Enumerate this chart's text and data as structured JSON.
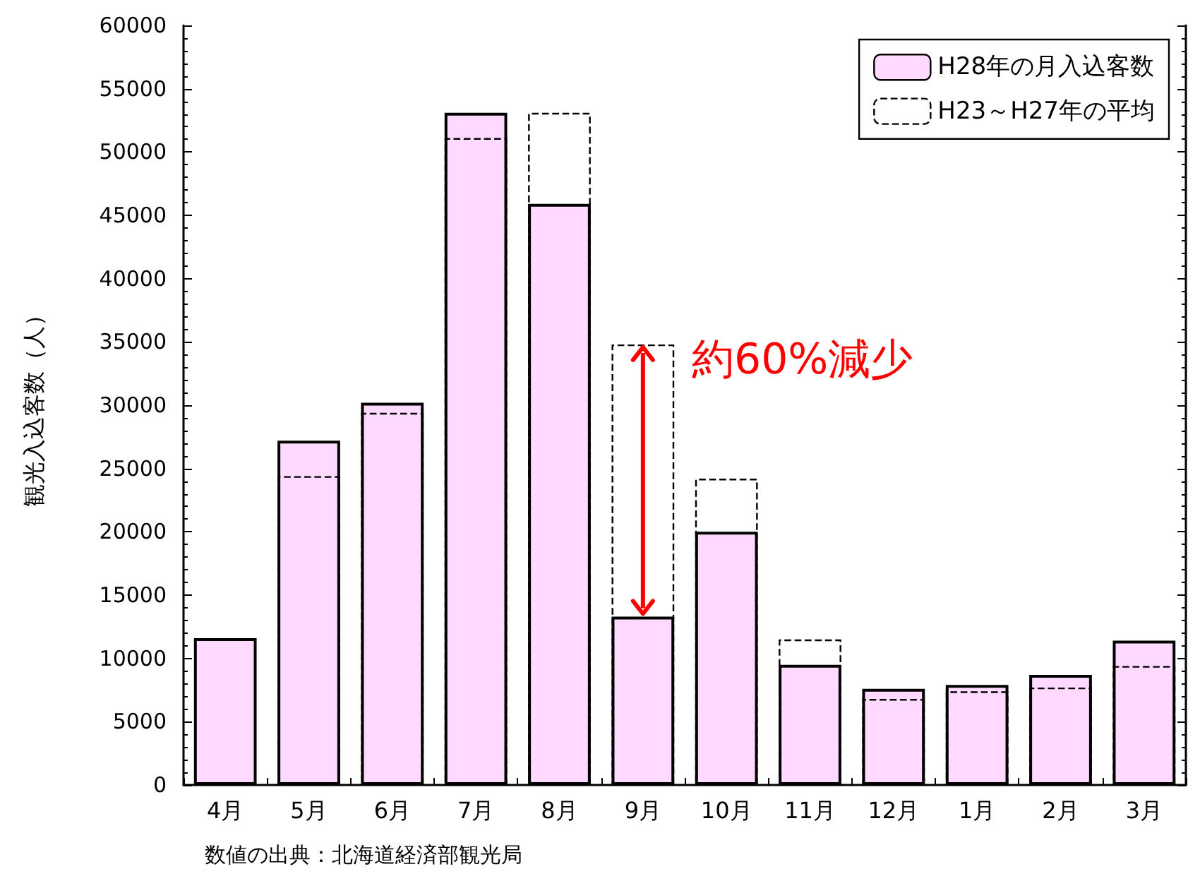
{
  "chart_data": {
    "type": "bar",
    "ylabel": "観光入込客数（人）",
    "categories": [
      "4月",
      "5月",
      "6月",
      "7月",
      "8月",
      "9月",
      "10月",
      "11月",
      "12月",
      "1月",
      "2月",
      "3月"
    ],
    "series": [
      {
        "name": "H28年の月入込客数",
        "color": "#ffd9ff",
        "values": [
          11600,
          27200,
          30200,
          53100,
          45900,
          13300,
          20000,
          9500,
          7600,
          7900,
          8700,
          11400
        ]
      },
      {
        "name": "H23～H27年の平均",
        "color": "#000000",
        "line_style": "dashed",
        "values": [
          null,
          24400,
          29400,
          51100,
          53100,
          34800,
          24200,
          11500,
          6800,
          7400,
          7700,
          9400
        ]
      }
    ],
    "ylim": [
      0,
      60000
    ],
    "yticks": [
      0,
      5000,
      10000,
      15000,
      20000,
      25000,
      30000,
      35000,
      40000,
      45000,
      50000,
      55000,
      60000
    ],
    "grid": false,
    "legend": "top right",
    "annotations": [
      "約60%減少",
      "数値の出典：北海道経済部観光局"
    ]
  }
}
